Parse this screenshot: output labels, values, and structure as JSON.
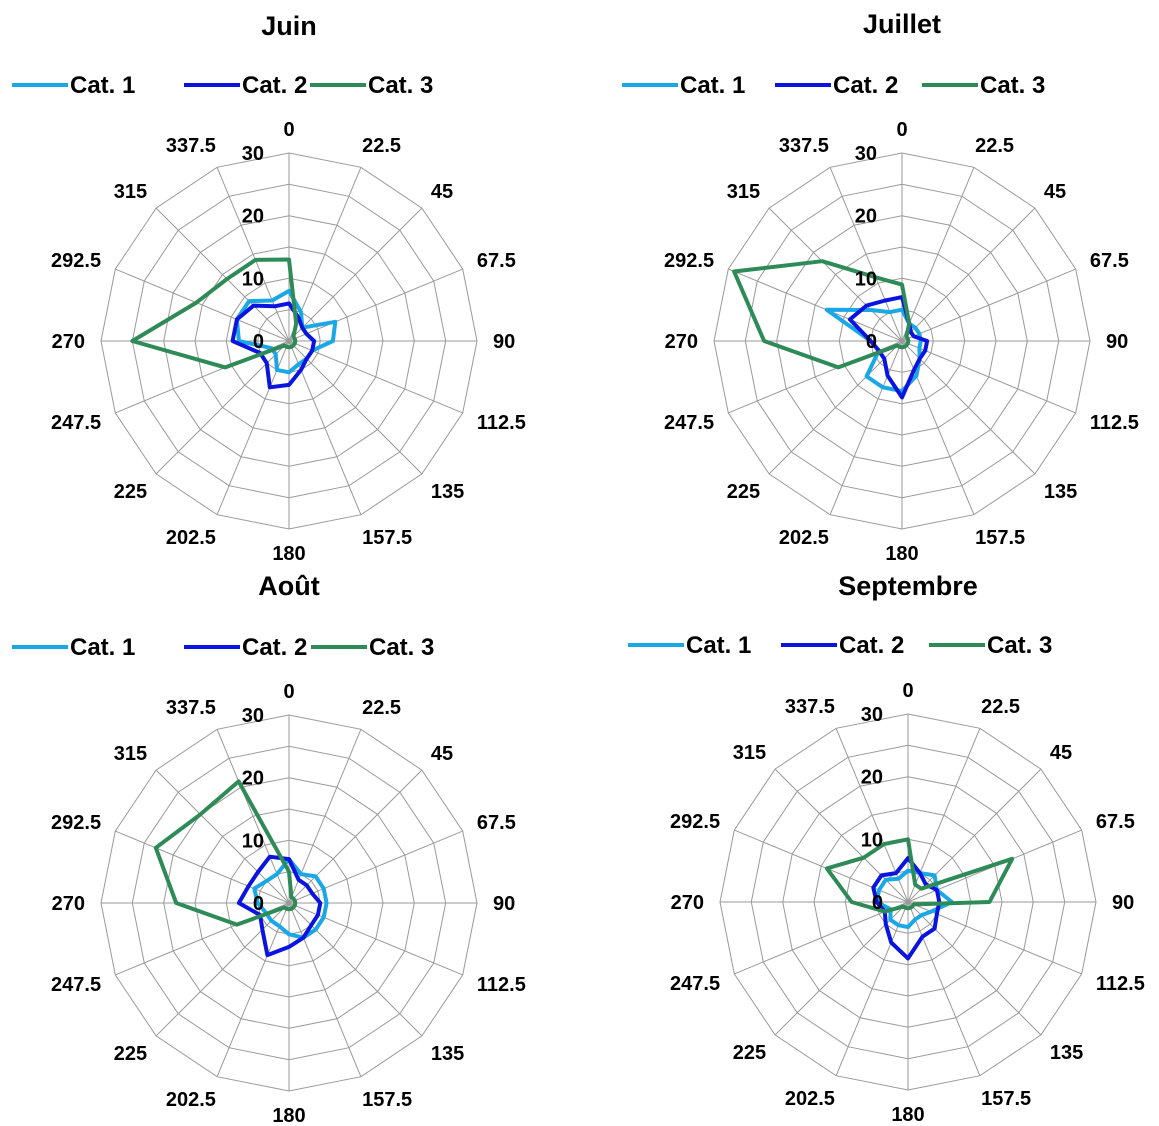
{
  "chart_data": [
    {
      "type": "radar",
      "title": "Juin",
      "categories": [
        "0",
        "22.5",
        "45",
        "67.5",
        "90",
        "112.5",
        "135",
        "157.5",
        "180",
        "202.5",
        "225",
        "247.5",
        "270",
        "292.5",
        "315",
        "337.5"
      ],
      "rlim": [
        0,
        30
      ],
      "rticks": [
        "0",
        "10",
        "20",
        "30"
      ],
      "legend_position": "top",
      "grid": true,
      "series": [
        {
          "name": "Cat. 1",
          "color": "#1aa7e6",
          "values": [
            8,
            5,
            3,
            8,
            7,
            4,
            4,
            4,
            5,
            5,
            3,
            3,
            8,
            9,
            9,
            7
          ]
        },
        {
          "name": "Cat. 2",
          "color": "#0a14e0",
          "values": [
            6,
            4,
            3,
            3,
            4,
            4,
            4,
            5,
            7,
            8,
            5,
            5,
            9,
            9,
            8,
            6
          ]
        },
        {
          "name": "Cat. 3",
          "color": "#2e8b57",
          "values": [
            13,
            3,
            1,
            1,
            1,
            1,
            1,
            1,
            1,
            1,
            1,
            11,
            25,
            16,
            14,
            14
          ]
        }
      ]
    },
    {
      "type": "radar",
      "title": "Juillet",
      "categories": [
        "0",
        "22.5",
        "45",
        "67.5",
        "90",
        "112.5",
        "135",
        "157.5",
        "180",
        "202.5",
        "225",
        "247.5",
        "270",
        "292.5",
        "315",
        "337.5"
      ],
      "rlim": [
        0,
        30
      ],
      "rticks": [
        "0",
        "10",
        "20",
        "30"
      ],
      "legend_position": "top",
      "grid": true,
      "series": [
        {
          "name": "Cat. 1",
          "color": "#1aa7e6",
          "values": [
            5,
            3,
            3,
            3,
            3,
            3,
            4,
            6,
            8,
            8,
            8,
            4,
            5,
            13,
            7,
            5
          ]
        },
        {
          "name": "Cat. 2",
          "color": "#0a14e0",
          "values": [
            7,
            3,
            2,
            2,
            4,
            4,
            4,
            5,
            9,
            6,
            4,
            4,
            5,
            9,
            8,
            7
          ]
        },
        {
          "name": "Cat. 3",
          "color": "#2e8b57",
          "values": [
            9,
            3,
            1,
            1,
            1,
            1,
            1,
            1,
            1,
            1,
            1,
            11,
            22,
            29,
            18,
            11
          ]
        }
      ]
    },
    {
      "type": "radar",
      "title": "Août",
      "categories": [
        "0",
        "22.5",
        "45",
        "67.5",
        "90",
        "112.5",
        "135",
        "157.5",
        "180",
        "202.5",
        "225",
        "247.5",
        "270",
        "292.5",
        "315",
        "337.5"
      ],
      "rlim": [
        0,
        30
      ],
      "rticks": [
        "0",
        "10",
        "20",
        "30"
      ],
      "legend_position": "top",
      "grid": true,
      "series": [
        {
          "name": "Cat. 1",
          "color": "#1aa7e6",
          "values": [
            7,
            5,
            6,
            6,
            6,
            6,
            6,
            6,
            5,
            4,
            4,
            4,
            5,
            6,
            5,
            5
          ]
        },
        {
          "name": "Cat. 2",
          "color": "#0a14e0",
          "values": [
            7,
            4,
            4,
            4,
            5,
            5,
            5,
            6,
            7,
            9,
            6,
            5,
            8,
            7,
            7,
            8
          ]
        },
        {
          "name": "Cat. 3",
          "color": "#2e8b57",
          "values": [
            5,
            1,
            1,
            1,
            1,
            1,
            1,
            1,
            1,
            1,
            1,
            9,
            18,
            23,
            20,
            21
          ]
        }
      ]
    },
    {
      "type": "radar",
      "title": "Septembre",
      "categories": [
        "0",
        "22.5",
        "45",
        "67.5",
        "90",
        "112.5",
        "135",
        "157.5",
        "180",
        "202.5",
        "225",
        "247.5",
        "270",
        "292.5",
        "315",
        "337.5"
      ],
      "rlim": [
        0,
        30
      ],
      "rticks": [
        "0",
        "10",
        "20",
        "30"
      ],
      "legend_position": "top",
      "grid": true,
      "series": [
        {
          "name": "Cat. 1",
          "color": "#1aa7e6",
          "values": [
            5,
            5,
            6,
            5,
            7,
            4,
            3,
            3,
            4,
            4,
            4,
            3,
            5,
            5,
            5,
            4
          ]
        },
        {
          "name": "Cat. 2",
          "color": "#0a14e0",
          "values": [
            7,
            5,
            4,
            5,
            5,
            5,
            6,
            6,
            9,
            7,
            5,
            4,
            5,
            6,
            6,
            5
          ]
        },
        {
          "name": "Cat. 3",
          "color": "#2e8b57",
          "values": [
            10,
            3,
            3,
            18,
            13,
            1,
            1,
            1,
            1,
            1,
            1,
            4,
            9,
            14,
            10,
            10
          ]
        }
      ]
    }
  ]
}
